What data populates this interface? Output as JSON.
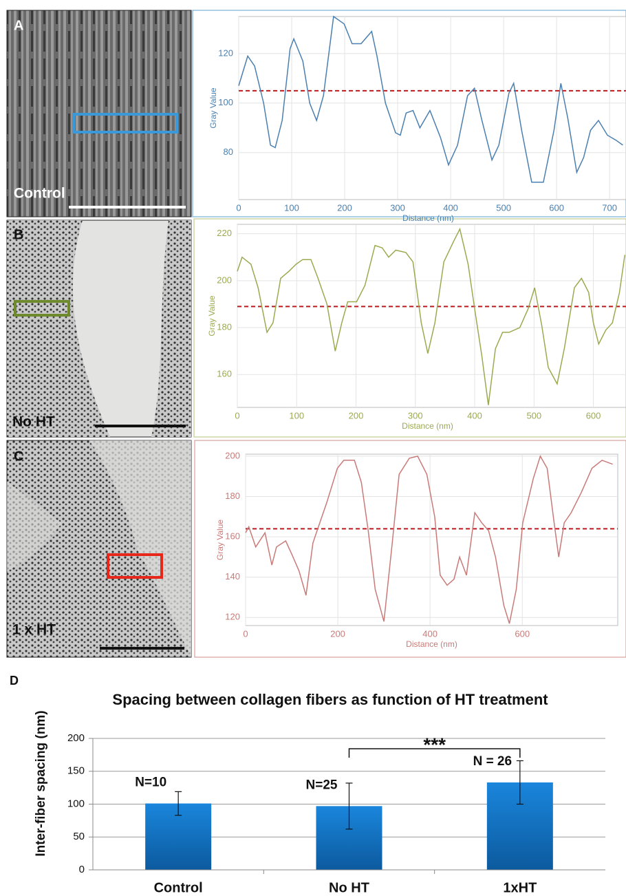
{
  "panels": [
    {
      "letter": "A",
      "image_label": "Control"
    },
    {
      "letter": "B",
      "image_label": "No HT"
    },
    {
      "letter": "C",
      "image_label": "1 x HT"
    },
    {
      "letter": "D"
    }
  ],
  "chart_data": [
    {
      "type": "line",
      "x_label": "Distance (nm)",
      "y_label": "Gray Value",
      "x": [
        0,
        17,
        30,
        47,
        60,
        69,
        82,
        97,
        104,
        121,
        134,
        147,
        160,
        179,
        199,
        214,
        231,
        251,
        261,
        277,
        296,
        305,
        316,
        329,
        342,
        361,
        381,
        396,
        413,
        432,
        445,
        458,
        478,
        491,
        510,
        519,
        534,
        553,
        575,
        595,
        608,
        621,
        638,
        651,
        664,
        679,
        696,
        712,
        725
      ],
      "series": [
        {
          "color": "#4a7fb0",
          "values": [
            107,
            119,
            115,
            100,
            83,
            82,
            93,
            122,
            126,
            117,
            100,
            93,
            103,
            135,
            132,
            124,
            124,
            129,
            119,
            100,
            88,
            87,
            96,
            97,
            90,
            97,
            86,
            75,
            83,
            103,
            106,
            94,
            77,
            83,
            104,
            108,
            89,
            68,
            68,
            89,
            108,
            94,
            72,
            78,
            89,
            93,
            87,
            85,
            83
          ]
        }
      ],
      "reference_line": {
        "value": 105,
        "color": "#c0171c"
      },
      "xlim": [
        0,
        731
      ],
      "ylim": [
        61,
        135
      ],
      "xticks": [
        0,
        100,
        200,
        300,
        400,
        500,
        600,
        700
      ],
      "yticks": [
        80,
        100,
        120
      ],
      "grid": true
    },
    {
      "type": "line",
      "x_label": "Distance (nm)",
      "y_label": "Gray Value",
      "x": [
        0,
        8,
        23,
        35,
        50,
        60,
        73,
        87,
        99,
        110,
        124,
        136,
        151,
        165,
        176,
        186,
        201,
        215,
        232,
        244,
        255,
        267,
        284,
        296,
        310,
        321,
        333,
        348,
        365,
        375,
        389,
        400,
        412,
        423,
        435,
        447,
        458,
        476,
        490,
        501,
        513,
        524,
        539,
        551,
        568,
        580,
        592,
        600,
        609,
        621,
        632,
        644,
        653
      ],
      "series": [
        {
          "color": "#9aaa4f",
          "values": [
            204,
            210,
            207,
            197,
            178,
            182,
            201,
            204,
            207,
            209,
            209,
            201,
            190,
            170,
            182,
            191,
            191,
            198,
            215,
            214,
            210,
            213,
            212,
            208,
            182,
            169,
            182,
            208,
            217,
            222,
            207,
            188,
            168,
            147,
            171,
            178,
            178,
            180,
            188,
            197,
            181,
            163,
            156,
            171,
            197,
            201,
            195,
            182,
            173,
            179,
            182,
            195,
            211
          ]
        }
      ],
      "reference_line": {
        "value": 189,
        "color": "#c0171c"
      },
      "xlim": [
        0,
        655
      ],
      "ylim": [
        146,
        224
      ],
      "xticks": [
        0,
        100,
        200,
        300,
        400,
        500,
        600
      ],
      "yticks": [
        160,
        180,
        200,
        220
      ],
      "grid": true
    },
    {
      "type": "line",
      "x_label": "Distance (nm)",
      "y_label": "Gray Value",
      "x": [
        0,
        7,
        22,
        42,
        57,
        67,
        87,
        101,
        116,
        131,
        146,
        161,
        176,
        199,
        213,
        236,
        251,
        266,
        281,
        300,
        318,
        333,
        355,
        373,
        393,
        410,
        422,
        437,
        452,
        464,
        479,
        497,
        512,
        527,
        542,
        560,
        572,
        587,
        601,
        624,
        639,
        654,
        669,
        679,
        691,
        706,
        728,
        751,
        773,
        796
      ],
      "series": [
        {
          "color": "#c97a78",
          "values": [
            162,
            165,
            155,
            162,
            146,
            155,
            158,
            151,
            143,
            131,
            157,
            167,
            177,
            194,
            198,
            198,
            187,
            163,
            134,
            118,
            157,
            191,
            199,
            200,
            191,
            170,
            141,
            136,
            139,
            150,
            141,
            172,
            167,
            163,
            150,
            126,
            117,
            134,
            167,
            189,
            200,
            194,
            167,
            150,
            167,
            172,
            182,
            194,
            198,
            196
          ]
        }
      ],
      "reference_line": {
        "value": 164,
        "color": "#c0171c"
      },
      "xlim": [
        0,
        807
      ],
      "ylim": [
        116,
        201
      ],
      "xticks": [
        0,
        200,
        400,
        600
      ],
      "yticks": [
        120,
        140,
        160,
        180,
        200
      ],
      "grid": true
    },
    {
      "type": "bar",
      "title": "Spacing between collagen fibers as function of HT treatment",
      "y_label": "Inter-fiber spacing (nm)",
      "categories": [
        "Control",
        "No HT",
        "1xHT"
      ],
      "values": [
        101,
        97,
        133
      ],
      "errors": [
        18,
        35,
        33
      ],
      "color": "#1479c9",
      "annotations": [
        "N=10",
        "N=25",
        "N = 26"
      ],
      "significance": {
        "label": "***",
        "categories": [
          "No HT",
          "1xHT"
        ]
      },
      "ylim": [
        0,
        200
      ],
      "yticks": [
        0,
        50,
        100,
        150,
        200
      ],
      "grid": true
    }
  ]
}
